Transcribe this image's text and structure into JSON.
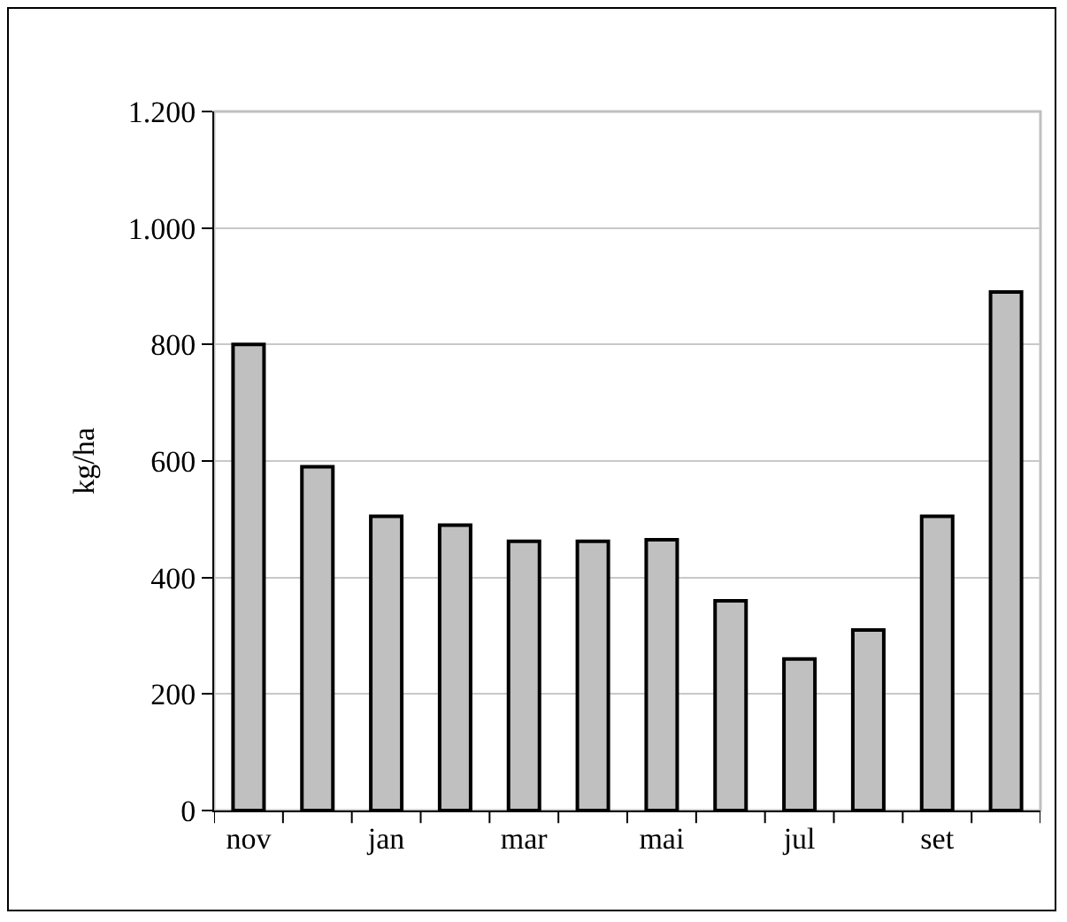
{
  "chart_data": {
    "type": "bar",
    "ylabel": "kg/ha",
    "categories": [
      "nov",
      null,
      "jan",
      null,
      "mar",
      null,
      "mai",
      null,
      "jul",
      null,
      "set",
      null
    ],
    "values": [
      800,
      590,
      505,
      490,
      462,
      462,
      465,
      360,
      260,
      310,
      505,
      890
    ],
    "color": "#c0c0c0",
    "ylim": [
      0,
      1200
    ],
    "yticks": [
      0,
      200,
      400,
      600,
      800,
      {
        "value": 1000,
        "label": "1.000"
      },
      {
        "value": 1200,
        "label": "1.200"
      }
    ],
    "grid": "y"
  }
}
